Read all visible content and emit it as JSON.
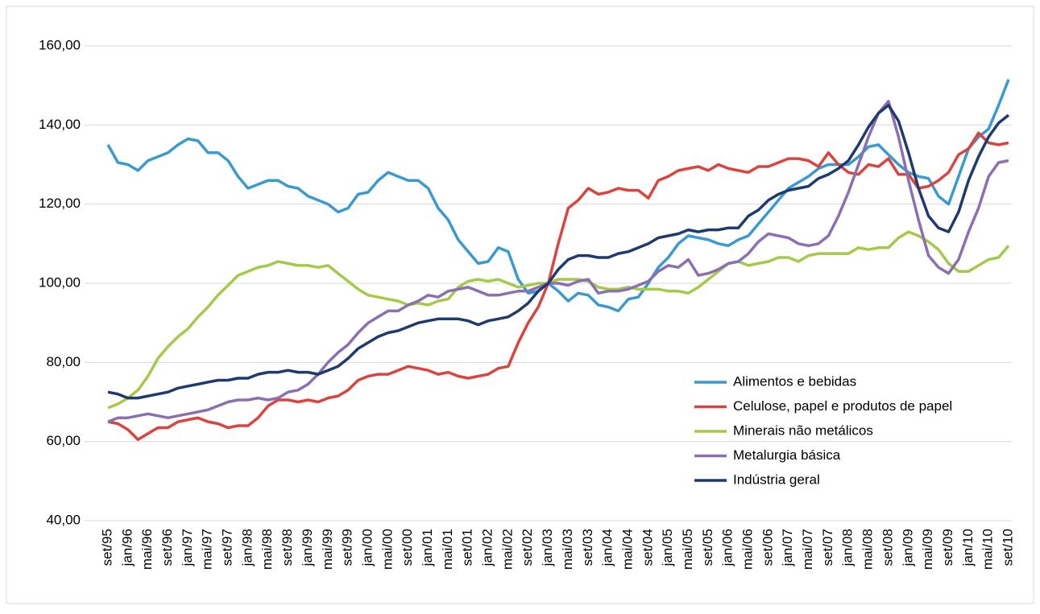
{
  "chart_data": {
    "type": "line",
    "categories": [
      "set/95",
      null,
      "jan/96",
      null,
      "mai/96",
      null,
      "set/96",
      null,
      "jan/97",
      null,
      "mai/97",
      null,
      "set/97",
      null,
      "jan/98",
      null,
      "mai/98",
      null,
      "set/98",
      null,
      "jan/99",
      null,
      "mai/99",
      null,
      "set/99",
      null,
      "jan/00",
      null,
      "mai/00",
      null,
      "set/00",
      null,
      "jan/01",
      null,
      "mai/01",
      null,
      "set/01",
      null,
      "jan/02",
      null,
      "mai/02",
      null,
      "set/02",
      null,
      "jan/03",
      null,
      "mai/03",
      null,
      "set/03",
      null,
      "jan/04",
      null,
      "mai/04",
      null,
      "set/04",
      null,
      "jan/05",
      null,
      "mai/05",
      null,
      "set/05",
      null,
      "jan/06",
      null,
      "mai/06",
      null,
      "set/06",
      null,
      "jan/07",
      null,
      "mai/07",
      null,
      "set/07",
      null,
      "jan/08",
      null,
      "mai/08",
      null,
      "set/08",
      null,
      "jan/09",
      null,
      "mai/09",
      null,
      "set/09",
      null,
      "jan/10",
      null,
      "mai/10",
      null,
      "set/10"
    ],
    "series": [
      {
        "name": "Alimentos e bebidas",
        "color": "#3a9ad0",
        "values": [
          135,
          130.5,
          130,
          128.5,
          131,
          132,
          133,
          135,
          136.5,
          136,
          133,
          133,
          131,
          127,
          124,
          125,
          126,
          126,
          124.5,
          124,
          122,
          121,
          120,
          118,
          119,
          122.5,
          123,
          126,
          128,
          127,
          126,
          126,
          124,
          119,
          116,
          111,
          108,
          105,
          105.5,
          109,
          108,
          101,
          97.5,
          98,
          100,
          98,
          95.5,
          97.5,
          97,
          94.5,
          94,
          93,
          96,
          96.5,
          100,
          104,
          106.5,
          110,
          112,
          111.5,
          111,
          110,
          109.5,
          111,
          112,
          115,
          118,
          121,
          124,
          125.5,
          127,
          129,
          130,
          130,
          130,
          132,
          134.5,
          135,
          132.5,
          130,
          128,
          127,
          126.5,
          122,
          120,
          127,
          134,
          137,
          139,
          145,
          151.5
        ]
      },
      {
        "name": "Celulose, papel e produtos de papel",
        "color": "#d9443e",
        "values": [
          65,
          64.5,
          63,
          60.5,
          62,
          63.5,
          63.5,
          65,
          65.5,
          66,
          65,
          64.5,
          63.5,
          64,
          64,
          66,
          69,
          70.5,
          70.5,
          70,
          70.5,
          70,
          71,
          71.5,
          73,
          75.5,
          76.5,
          77,
          77,
          78,
          79,
          78.5,
          78,
          77,
          77.5,
          76.5,
          76,
          76.5,
          77,
          78.5,
          79,
          85,
          90,
          94,
          100,
          110,
          119,
          121,
          124,
          122.5,
          123,
          124,
          123.5,
          123.5,
          121.5,
          126,
          127,
          128.5,
          129,
          129.5,
          128.5,
          130,
          129,
          128.5,
          128,
          129.5,
          129.5,
          130.5,
          131.5,
          131.5,
          131,
          129.5,
          133,
          130,
          128,
          127.5,
          130,
          129.5,
          131.5,
          127.5,
          127.5,
          124,
          124.5,
          126,
          128,
          132.5,
          134,
          138,
          135.5,
          135,
          135.5
        ]
      },
      {
        "name": "Minerais não metálicos",
        "color": "#a6c94a",
        "values": [
          68.5,
          69.5,
          71,
          73,
          76.5,
          81,
          84,
          86.5,
          88.5,
          91.5,
          94,
          97,
          99.5,
          102,
          103,
          104,
          104.5,
          105.5,
          105,
          104.5,
          104.5,
          104,
          104.5,
          102.5,
          100.5,
          98.5,
          97,
          96.5,
          96,
          95.5,
          94.5,
          95,
          94.5,
          95.5,
          96,
          99,
          100.5,
          101,
          100.5,
          101,
          100,
          99,
          99.5,
          100,
          100,
          101,
          101,
          101,
          100.5,
          99,
          98.5,
          98.5,
          99,
          98.5,
          98.5,
          98.5,
          98,
          98,
          97.5,
          99,
          101,
          103,
          105,
          105.5,
          104.5,
          105,
          105.5,
          106.5,
          106.5,
          105.5,
          107,
          107.5,
          107.5,
          107.5,
          107.5,
          109,
          108.5,
          109,
          109,
          111.5,
          113,
          112,
          110.5,
          108.5,
          105,
          103,
          103,
          104.5,
          106,
          106.5,
          109.5
        ]
      },
      {
        "name": "Metalurgia básica",
        "color": "#8b6fb3",
        "values": [
          65,
          66,
          66,
          66.5,
          67,
          66.5,
          66,
          66.5,
          67,
          67.5,
          68,
          69,
          70,
          70.5,
          70.5,
          71,
          70.5,
          71,
          72.5,
          73,
          74.5,
          77,
          80,
          82.5,
          84.5,
          87.5,
          90,
          91.5,
          93,
          93,
          94.5,
          95.5,
          97,
          96.5,
          98,
          98.5,
          99,
          98,
          97,
          97,
          97.5,
          98,
          98,
          99,
          100,
          100,
          99.5,
          100.5,
          101,
          97.5,
          98,
          98,
          98.5,
          99.5,
          100.5,
          103,
          104.5,
          104,
          106,
          102,
          102.5,
          103.5,
          105,
          105.5,
          107.5,
          110.5,
          112.5,
          112,
          111.5,
          110,
          109.5,
          110,
          112,
          117,
          123,
          130,
          137,
          143,
          146,
          137,
          126,
          116,
          107,
          104,
          102.5,
          106,
          113,
          119,
          127,
          130.5,
          131
        ]
      },
      {
        "name": "Indústria geral",
        "color": "#1e3a6e",
        "values": [
          72.5,
          72,
          71,
          71,
          71.5,
          72,
          72.5,
          73.5,
          74,
          74.5,
          75,
          75.5,
          75.5,
          76,
          76,
          77,
          77.5,
          77.5,
          78,
          77.5,
          77.5,
          77,
          78,
          79,
          81,
          83.5,
          85,
          86.5,
          87.5,
          88,
          89,
          90,
          90.5,
          91,
          91,
          91,
          90.5,
          89.5,
          90.5,
          91,
          91.5,
          93,
          95,
          98,
          100,
          103.5,
          106,
          107,
          107,
          106.5,
          106.5,
          107.5,
          108,
          109,
          110,
          111.5,
          112,
          112.5,
          113.5,
          113,
          113.5,
          113.5,
          114,
          114,
          117,
          118.5,
          121,
          122.5,
          123.5,
          124,
          124.5,
          126.5,
          127.5,
          129,
          131,
          135,
          139.5,
          143,
          145,
          141,
          133,
          124,
          117,
          114,
          113,
          118,
          126,
          132,
          137,
          140.5,
          142.5
        ]
      }
    ],
    "ylim": [
      40,
      160
    ],
    "yticks": [
      {
        "value": 40,
        "label": "40,00"
      },
      {
        "value": 60,
        "label": "60,00"
      },
      {
        "value": 80,
        "label": "80,00"
      },
      {
        "value": 100,
        "label": "100,00"
      },
      {
        "value": 120,
        "label": "120,00"
      },
      {
        "value": 140,
        "label": "140,00"
      },
      {
        "value": 160,
        "label": "160,00"
      }
    ],
    "grid": true,
    "legend": "lower-right"
  }
}
